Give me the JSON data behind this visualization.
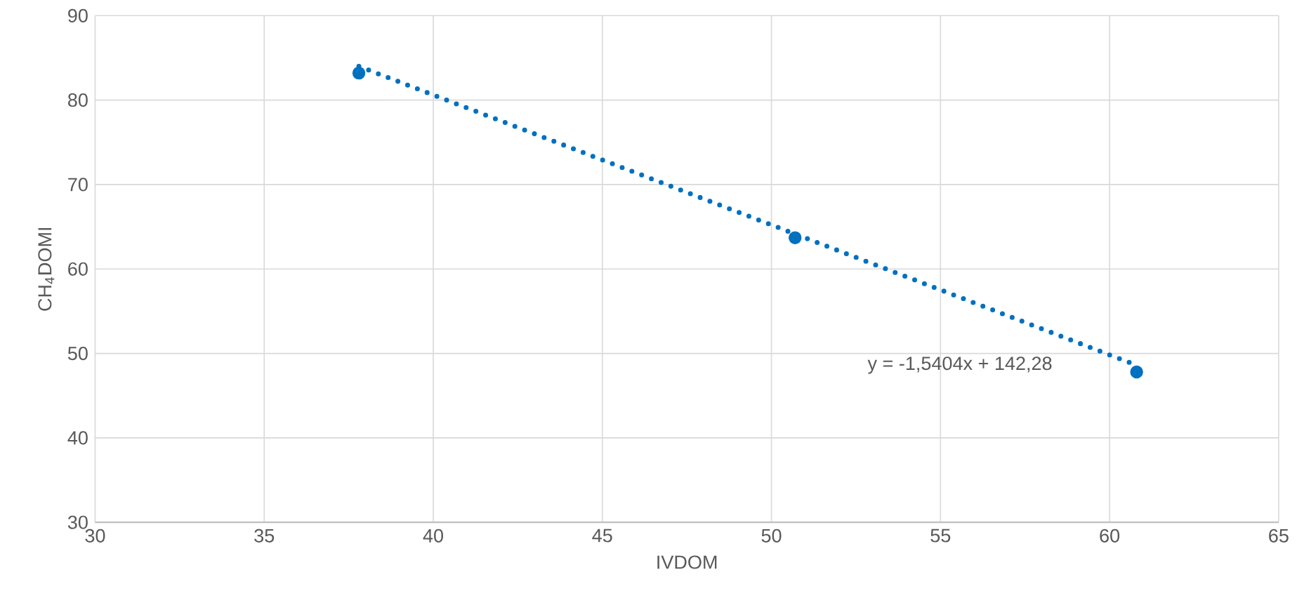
{
  "chart_data": {
    "type": "scatter",
    "xlabel": "IVDOM",
    "ylabel": "CH$_{4}$DOMI",
    "grid": true,
    "xlim": [
      30,
      65
    ],
    "xticks": [
      30,
      35,
      40,
      45,
      50,
      55,
      60,
      65
    ],
    "ylim": [
      30,
      90
    ],
    "yticks": [
      30,
      40,
      50,
      60,
      70,
      80,
      90
    ],
    "series": [
      {
        "marker": "circle",
        "color": "#0070c0",
        "x": [
          37.8,
          50.7,
          60.8
        ],
        "values": [
          83.2,
          63.7,
          47.8
        ]
      },
      {
        "type": "line",
        "line_style": "dotted",
        "color": "#0070c0",
        "x": [
          37.8,
          60.8
        ],
        "values": [
          84.0,
          48.6
        ]
      }
    ],
    "annotations": [
      "y = -1,5404x + 142,28"
    ]
  }
}
